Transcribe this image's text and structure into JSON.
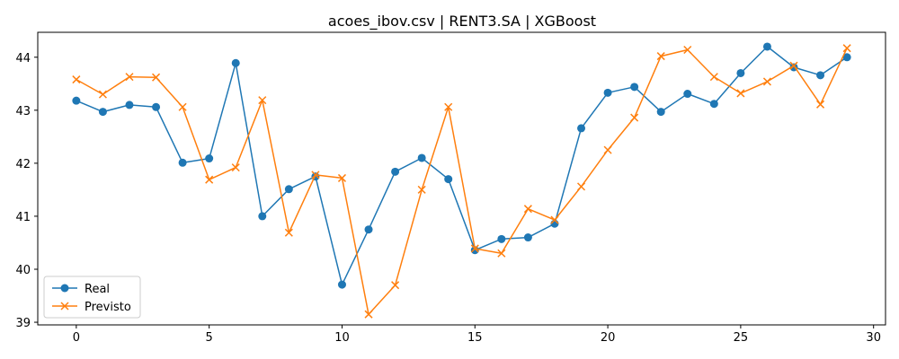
{
  "chart_data": {
    "type": "line",
    "title": "acoes_ibov.csv | RENT3.SA | XGBoost",
    "xlabel": "",
    "ylabel": "",
    "xlim": [
      -1.45,
      30.45
    ],
    "ylim": [
      38.95,
      44.47
    ],
    "x_ticks": [
      0,
      5,
      10,
      15,
      20,
      25,
      30
    ],
    "y_ticks": [
      39,
      40,
      41,
      42,
      43,
      44
    ],
    "x": [
      0,
      1,
      2,
      3,
      4,
      5,
      6,
      7,
      8,
      9,
      10,
      11,
      12,
      13,
      14,
      15,
      16,
      17,
      18,
      19,
      20,
      21,
      22,
      23,
      24,
      25,
      26,
      27,
      28,
      29
    ],
    "legend_position": "lower-left",
    "grid": false,
    "series": [
      {
        "name": "Real",
        "color": "#1f77b4",
        "marker": "circle",
        "values": [
          43.18,
          42.97,
          43.1,
          43.06,
          42.01,
          42.09,
          43.89,
          41.0,
          41.51,
          41.75,
          39.71,
          40.75,
          41.84,
          42.1,
          41.7,
          40.36,
          40.57,
          40.6,
          40.86,
          42.66,
          43.33,
          43.44,
          42.97,
          43.31,
          43.12,
          43.7,
          44.2,
          43.81,
          43.66,
          44.0
        ]
      },
      {
        "name": "Previsto",
        "color": "#ff7f0e",
        "marker": "x",
        "values": [
          43.58,
          43.3,
          43.63,
          43.62,
          43.06,
          41.69,
          41.92,
          43.19,
          40.69,
          41.78,
          41.72,
          39.15,
          39.7,
          41.5,
          43.06,
          40.39,
          40.3,
          41.14,
          40.93,
          41.56,
          42.25,
          42.86,
          44.02,
          44.14,
          43.63,
          43.32,
          43.54,
          43.84,
          43.11,
          44.17
        ]
      }
    ]
  }
}
